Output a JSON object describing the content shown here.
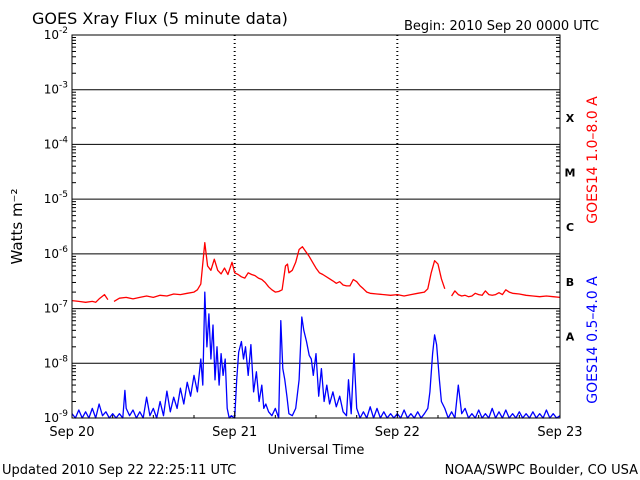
{
  "header": {
    "title": "GOES Xray Flux (5 minute data)",
    "begin": "Begin:  2010 Sep 20 0000 UTC"
  },
  "footer": {
    "updated": "Updated 2010 Sep 22 22:25:11 UTC",
    "credit": "NOAA/SWPC Boulder, CO USA"
  },
  "colors": {
    "long_channel": "#ff0000",
    "short_channel": "#0000ff",
    "axes": "#000000"
  },
  "chart_data": {
    "type": "line",
    "title": "GOES Xray Flux (5 minute data)",
    "xlabel": "Universal Time",
    "ylabel": "Watts m⁻²",
    "yscale": "log",
    "ylim": [
      1e-09,
      0.01
    ],
    "xlim": [
      0,
      72
    ],
    "x_unit": "hours since 2010 Sep 20 0000 UTC",
    "x_ticks": [
      {
        "x": 0,
        "label": "Sep 20"
      },
      {
        "x": 24,
        "label": "Sep 21"
      },
      {
        "x": 48,
        "label": "Sep 22"
      },
      {
        "x": 72,
        "label": "Sep 23"
      }
    ],
    "y_ticks": [
      {
        "exp": -2
      },
      {
        "exp": -3
      },
      {
        "exp": -4
      },
      {
        "exp": -5
      },
      {
        "exp": -6
      },
      {
        "exp": -7
      },
      {
        "exp": -8
      },
      {
        "exp": -9
      }
    ],
    "y_tick_base": "10",
    "flare_classes": [
      {
        "label": "X",
        "value": 0.00032
      },
      {
        "label": "M",
        "value": 3.2e-05
      },
      {
        "label": "C",
        "value": 3.2e-06
      },
      {
        "label": "B",
        "value": 3.2e-07
      },
      {
        "label": "A",
        "value": 3.2e-08
      }
    ],
    "grid": true,
    "series": [
      {
        "name": "GOES14 1.0–8.0 A",
        "color": "#ff0000",
        "points": [
          [
            0,
            1.4e-07
          ],
          [
            1,
            1.35e-07
          ],
          [
            2,
            1.3e-07
          ],
          [
            3,
            1.35e-07
          ],
          [
            3.5,
            1.3e-07
          ],
          [
            4,
            1.5e-07
          ],
          [
            4.8,
            1.8e-07
          ],
          [
            5.3,
            1.45e-07
          ],
          [
            5.5,
            null
          ],
          [
            6.2,
            1.35e-07
          ],
          [
            7,
            1.55e-07
          ],
          [
            8,
            1.6e-07
          ],
          [
            9,
            1.5e-07
          ],
          [
            10,
            1.6e-07
          ],
          [
            11,
            1.7e-07
          ],
          [
            12,
            1.6e-07
          ],
          [
            13,
            1.75e-07
          ],
          [
            14,
            1.7e-07
          ],
          [
            15,
            1.85e-07
          ],
          [
            16,
            1.8e-07
          ],
          [
            17,
            1.9e-07
          ],
          [
            18,
            2e-07
          ],
          [
            18.5,
            2.2e-07
          ],
          [
            19,
            2.8e-07
          ],
          [
            19.6,
            1.6e-06
          ],
          [
            20,
            6e-07
          ],
          [
            20.5,
            5e-07
          ],
          [
            21,
            8e-07
          ],
          [
            21.5,
            5e-07
          ],
          [
            22,
            4.3e-07
          ],
          [
            22.5,
            5.5e-07
          ],
          [
            23,
            4.2e-07
          ],
          [
            23.6,
            7e-07
          ],
          [
            24,
            4.5e-07
          ],
          [
            24.5,
            4.2e-07
          ],
          [
            25,
            3.8e-07
          ],
          [
            25.5,
            3.6e-07
          ],
          [
            26,
            4.5e-07
          ],
          [
            26.5,
            4.2e-07
          ],
          [
            27,
            4e-07
          ],
          [
            27.5,
            3.6e-07
          ],
          [
            28,
            3.4e-07
          ],
          [
            28.5,
            3e-07
          ],
          [
            29,
            2.5e-07
          ],
          [
            29.5,
            2.2e-07
          ],
          [
            30,
            2e-07
          ],
          [
            30.5,
            2.05e-07
          ],
          [
            31,
            2.2e-07
          ],
          [
            31.5,
            6e-07
          ],
          [
            31.8,
            6.5e-07
          ],
          [
            32,
            4.5e-07
          ],
          [
            32.5,
            5e-07
          ],
          [
            33,
            7e-07
          ],
          [
            33.5,
            1.2e-06
          ],
          [
            34,
            1.35e-06
          ],
          [
            34.5,
            1.1e-06
          ],
          [
            35,
            9e-07
          ],
          [
            35.5,
            7e-07
          ],
          [
            36,
            5.5e-07
          ],
          [
            36.5,
            4.5e-07
          ],
          [
            37,
            4.2e-07
          ],
          [
            38,
            3.5e-07
          ],
          [
            38.5,
            3.2e-07
          ],
          [
            39,
            2.9e-07
          ],
          [
            39.5,
            3.1e-07
          ],
          [
            40,
            2.7e-07
          ],
          [
            40.5,
            2.6e-07
          ],
          [
            41,
            2.6e-07
          ],
          [
            41.5,
            3.4e-07
          ],
          [
            42,
            3.1e-07
          ],
          [
            42.5,
            2.6e-07
          ],
          [
            43,
            2.3e-07
          ],
          [
            43.5,
            2e-07
          ],
          [
            44,
            1.9e-07
          ],
          [
            45,
            1.85e-07
          ],
          [
            46,
            1.8e-07
          ],
          [
            47,
            1.75e-07
          ],
          [
            48,
            1.8e-07
          ],
          [
            49,
            1.7e-07
          ],
          [
            50,
            1.8e-07
          ],
          [
            51,
            1.9e-07
          ],
          [
            52,
            2e-07
          ],
          [
            52.5,
            2.3e-07
          ],
          [
            53,
            4.5e-07
          ],
          [
            53.5,
            7.5e-07
          ],
          [
            54,
            6.5e-07
          ],
          [
            54.5,
            3.5e-07
          ],
          [
            55,
            2.3e-07
          ],
          [
            55.3,
            null
          ],
          [
            56,
            1.7e-07
          ],
          [
            56.5,
            2.1e-07
          ],
          [
            57,
            1.8e-07
          ],
          [
            57.5,
            1.7e-07
          ],
          [
            58,
            1.75e-07
          ],
          [
            58.5,
            1.65e-07
          ],
          [
            59,
            1.7e-07
          ],
          [
            59.5,
            1.9e-07
          ],
          [
            60,
            1.8e-07
          ],
          [
            60.5,
            1.75e-07
          ],
          [
            61,
            2.1e-07
          ],
          [
            61.5,
            1.8e-07
          ],
          [
            62,
            1.75e-07
          ],
          [
            62.5,
            1.8e-07
          ],
          [
            63,
            1.95e-07
          ],
          [
            63.5,
            1.8e-07
          ],
          [
            64,
            2.2e-07
          ],
          [
            64.5,
            2e-07
          ],
          [
            65,
            1.9e-07
          ],
          [
            66,
            1.85e-07
          ],
          [
            67,
            1.75e-07
          ],
          [
            68,
            1.7e-07
          ],
          [
            69,
            1.65e-07
          ],
          [
            70,
            1.7e-07
          ],
          [
            71,
            1.65e-07
          ],
          [
            72,
            1.6e-07
          ]
        ]
      },
      {
        "name": "GOES14 0.5–4.0 A",
        "color": "#0000ff",
        "points": [
          [
            0,
            1.2e-09
          ],
          [
            0.5,
            1e-09
          ],
          [
            1,
            1.4e-09
          ],
          [
            1.5,
            1e-09
          ],
          [
            2,
            1.3e-09
          ],
          [
            2.5,
            1e-09
          ],
          [
            3,
            1.5e-09
          ],
          [
            3.5,
            1e-09
          ],
          [
            4,
            1.8e-09
          ],
          [
            4.5,
            1.1e-09
          ],
          [
            5,
            1.3e-09
          ],
          [
            5.5,
            1e-09
          ],
          [
            6,
            1.2e-09
          ],
          [
            6.5,
            1e-09
          ],
          [
            7,
            1.2e-09
          ],
          [
            7.5,
            1e-09
          ],
          [
            7.8,
            3.2e-09
          ],
          [
            8,
            1.5e-09
          ],
          [
            8.5,
            1.1e-09
          ],
          [
            9,
            1.4e-09
          ],
          [
            9.5,
            1e-09
          ],
          [
            10,
            1.3e-09
          ],
          [
            10.5,
            1e-09
          ],
          [
            11,
            2.4e-09
          ],
          [
            11.5,
            1.1e-09
          ],
          [
            12,
            1.5e-09
          ],
          [
            12.5,
            1e-09
          ],
          [
            13,
            2e-09
          ],
          [
            13.5,
            1.1e-09
          ],
          [
            14,
            3.1e-09
          ],
          [
            14.5,
            1.3e-09
          ],
          [
            15,
            2.4e-09
          ],
          [
            15.5,
            1.5e-09
          ],
          [
            16,
            3.5e-09
          ],
          [
            16.5,
            1.8e-09
          ],
          [
            17,
            4.5e-09
          ],
          [
            17.5,
            2.5e-09
          ],
          [
            18,
            6e-09
          ],
          [
            18.5,
            3e-09
          ],
          [
            19,
            1.2e-08
          ],
          [
            19.3,
            4e-09
          ],
          [
            19.6,
            2e-07
          ],
          [
            19.9,
            2e-08
          ],
          [
            20.2,
            8e-08
          ],
          [
            20.5,
            1.2e-08
          ],
          [
            20.8,
            5e-08
          ],
          [
            21.1,
            5e-09
          ],
          [
            21.4,
            2e-08
          ],
          [
            21.7,
            4e-09
          ],
          [
            22,
            1.5e-08
          ],
          [
            22.3,
            6e-09
          ],
          [
            22.6,
            1.2e-08
          ],
          [
            22.9,
            1.5e-09
          ],
          [
            23.2,
            1e-09
          ],
          [
            23.5,
            1.1e-09
          ],
          [
            24,
            1e-09
          ],
          [
            24.3,
            5e-09
          ],
          [
            24.6,
            1.6e-08
          ],
          [
            25,
            2.5e-08
          ],
          [
            25.3,
            1.2e-08
          ],
          [
            25.6,
            2e-08
          ],
          [
            26,
            6e-09
          ],
          [
            26.4,
            2.2e-08
          ],
          [
            26.8,
            3e-09
          ],
          [
            27.2,
            7e-09
          ],
          [
            27.6,
            2e-09
          ],
          [
            28,
            4e-09
          ],
          [
            28.3,
            1.5e-09
          ],
          [
            28.6,
            1.8e-09
          ],
          [
            29,
            1.3e-09
          ],
          [
            29.5,
            1.1e-09
          ],
          [
            30,
            1.5e-09
          ],
          [
            30.5,
            1e-09
          ],
          [
            30.8,
            6e-08
          ],
          [
            31.1,
            8e-09
          ],
          [
            31.4,
            5e-09
          ],
          [
            31.7,
            2.5e-09
          ],
          [
            32,
            1.2e-09
          ],
          [
            32.5,
            1.1e-09
          ],
          [
            33,
            1.5e-09
          ],
          [
            33.5,
            5e-09
          ],
          [
            33.9,
            7e-08
          ],
          [
            34.2,
            4e-08
          ],
          [
            34.6,
            2.5e-08
          ],
          [
            35,
            1.4e-08
          ],
          [
            35.3,
            1.2e-08
          ],
          [
            35.6,
            6e-09
          ],
          [
            36,
            1.5e-08
          ],
          [
            36.4,
            2.5e-09
          ],
          [
            36.8,
            8e-09
          ],
          [
            37.2,
            2e-09
          ],
          [
            37.6,
            4e-09
          ],
          [
            38,
            1.8e-09
          ],
          [
            38.5,
            3e-09
          ],
          [
            39,
            1.6e-09
          ],
          [
            39.5,
            2.5e-09
          ],
          [
            40,
            1.3e-09
          ],
          [
            40.5,
            1.1e-09
          ],
          [
            40.8,
            5e-09
          ],
          [
            41.2,
            1.2e-09
          ],
          [
            41.6,
            1.5e-08
          ],
          [
            42,
            1.5e-09
          ],
          [
            42.5,
            1e-09
          ],
          [
            43,
            1.3e-09
          ],
          [
            43.5,
            1e-09
          ],
          [
            44,
            1.6e-09
          ],
          [
            44.5,
            1e-09
          ],
          [
            45,
            1.5e-09
          ],
          [
            45.5,
            1e-09
          ],
          [
            46,
            1.3e-09
          ],
          [
            46.5,
            1e-09
          ],
          [
            47,
            1.2e-09
          ],
          [
            47.5,
            1e-09
          ],
          [
            48,
            1.2e-09
          ],
          [
            48.5,
            1e-09
          ],
          [
            49,
            1.4e-09
          ],
          [
            49.5,
            1e-09
          ],
          [
            50,
            1.2e-09
          ],
          [
            50.5,
            1e-09
          ],
          [
            51,
            1.3e-09
          ],
          [
            51.5,
            1e-09
          ],
          [
            52,
            1.2e-09
          ],
          [
            52.5,
            1.5e-09
          ],
          [
            52.8,
            3e-09
          ],
          [
            53.2,
            1.5e-08
          ],
          [
            53.5,
            3.3e-08
          ],
          [
            53.8,
            2.2e-08
          ],
          [
            54.2,
            5e-09
          ],
          [
            54.5,
            2e-09
          ],
          [
            55,
            1.5e-09
          ],
          [
            55.5,
            1e-09
          ],
          [
            56,
            1.3e-09
          ],
          [
            56.5,
            1e-09
          ],
          [
            57,
            4e-09
          ],
          [
            57.5,
            1.2e-09
          ],
          [
            58,
            1.5e-09
          ],
          [
            58.5,
            1e-09
          ],
          [
            59,
            1.2e-09
          ],
          [
            59.5,
            1e-09
          ],
          [
            60,
            1.4e-09
          ],
          [
            60.5,
            1e-09
          ],
          [
            61,
            1.2e-09
          ],
          [
            61.5,
            1e-09
          ],
          [
            62,
            1.5e-09
          ],
          [
            62.5,
            1e-09
          ],
          [
            63,
            1.3e-09
          ],
          [
            63.5,
            1e-09
          ],
          [
            64,
            1.4e-09
          ],
          [
            64.5,
            1e-09
          ],
          [
            65,
            1.2e-09
          ],
          [
            65.5,
            1e-09
          ],
          [
            66,
            1.3e-09
          ],
          [
            66.5,
            1e-09
          ],
          [
            67,
            1.2e-09
          ],
          [
            67.5,
            1e-09
          ],
          [
            68,
            1.3e-09
          ],
          [
            68.5,
            1e-09
          ],
          [
            69,
            1.2e-09
          ],
          [
            69.5,
            1e-09
          ],
          [
            70,
            1.4e-09
          ],
          [
            70.5,
            1e-09
          ],
          [
            71,
            1.2e-09
          ],
          [
            71.5,
            1e-09
          ],
          [
            72,
            1.1e-09
          ]
        ]
      }
    ]
  }
}
